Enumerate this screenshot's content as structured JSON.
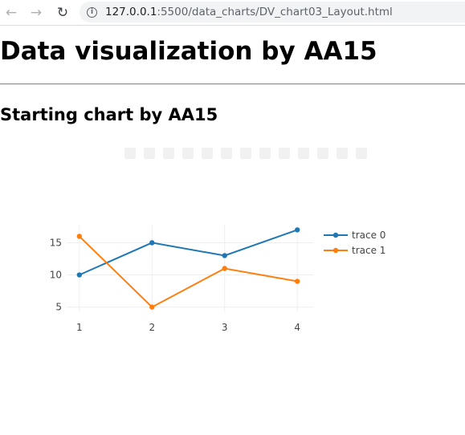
{
  "browser": {
    "url_host": "127.0.0.1",
    "url_path": ":5500/data_charts/DV_chart03_Layout.html",
    "back_icon": "arrow-left-icon",
    "forward_icon": "arrow-right-icon",
    "reload_icon": "reload-icon",
    "info_icon": "info-icon"
  },
  "page": {
    "title": "Data visualization by AA15",
    "subtitle": "Starting chart by AA15"
  },
  "chart_data": {
    "type": "line",
    "x": [
      1,
      2,
      3,
      4
    ],
    "series": [
      {
        "name": "trace 0",
        "values": [
          10,
          15,
          13,
          17
        ],
        "color": "#1f77b4"
      },
      {
        "name": "trace 1",
        "values": [
          16,
          5,
          11,
          9
        ],
        "color": "#ff7f0e"
      }
    ],
    "xticks": [
      "1",
      "2",
      "3",
      "4"
    ],
    "yticks": [
      "5",
      "10",
      "15"
    ],
    "ylim": [
      4.2,
      17.8
    ],
    "xlim": [
      0.98,
      4.02
    ],
    "grid": true,
    "legend_position": "top-right"
  }
}
